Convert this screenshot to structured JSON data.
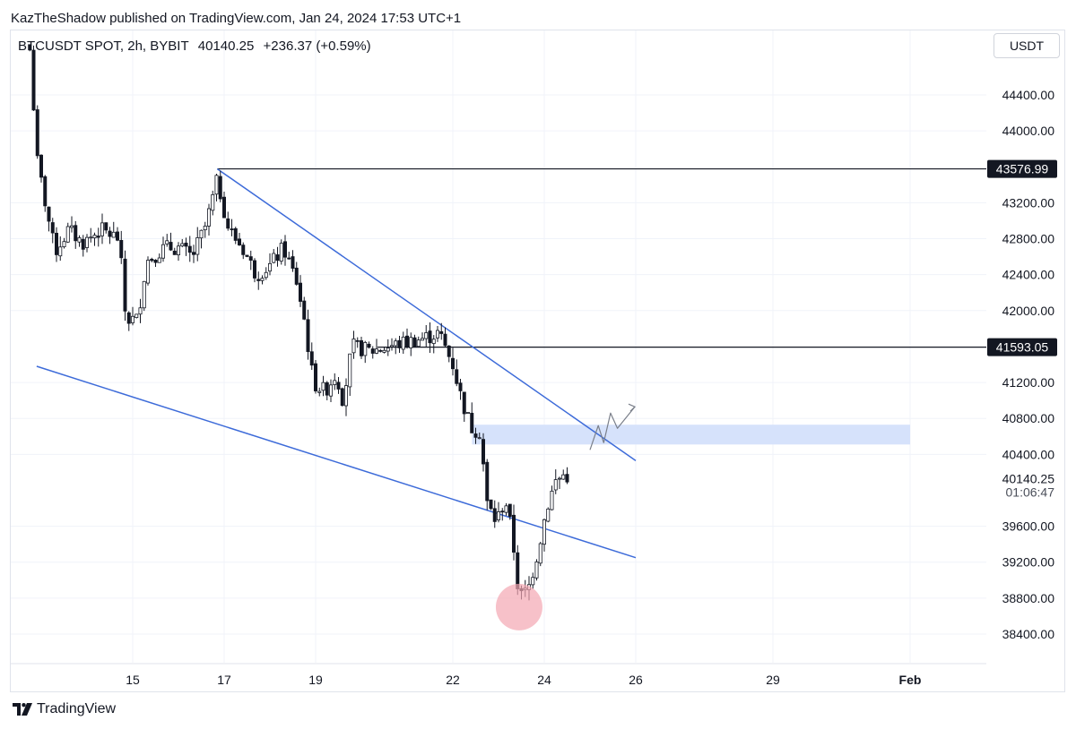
{
  "header": {
    "published_line": "KazTheShadow published on TradingView.com, Jan 24, 2024 17:53 UTC+1"
  },
  "legend": {
    "symbol": "BTCUSDT SPOT, 2h, BYBIT",
    "last": "40140.25",
    "change": "+236.37 (+0.59%)"
  },
  "toolbar": {
    "unit_label": "USDT"
  },
  "footer": {
    "brand": "TradingView"
  },
  "colors": {
    "candle": "#131722",
    "trendline": "#3d6bd9",
    "zone_fill": "#d6e2fb",
    "circle_fill": "#f3a6b2",
    "level_line": "#131722"
  },
  "chart_data": {
    "type": "candlestick",
    "symbol": "BTCUSDT SPOT",
    "interval": "2h",
    "exchange": "BYBIT",
    "ylim": [
      38100,
      44900
    ],
    "x_axis_ticks": [
      {
        "label": "15",
        "day": 15
      },
      {
        "label": "17",
        "day": 17
      },
      {
        "label": "19",
        "day": 19
      },
      {
        "label": "22",
        "day": 22
      },
      {
        "label": "24",
        "day": 24
      },
      {
        "label": "26",
        "day": 26
      },
      {
        "label": "29",
        "day": 29
      },
      {
        "label": "Feb",
        "day": 32,
        "bold": true
      }
    ],
    "y_axis_ticks": [
      "44400.00",
      "44000.00",
      "43200.00",
      "42800.00",
      "42400.00",
      "42000.00",
      "41200.00",
      "40800.00",
      "40400.00",
      "39600.00",
      "39200.00",
      "38800.00",
      "38400.00"
    ],
    "price_markers": [
      {
        "label": "43576.99",
        "value": 43576.99
      },
      {
        "label": "41593.05",
        "value": 41593.05
      }
    ],
    "last_price": {
      "label": "40140.25",
      "value": 40140.25,
      "countdown": "01:06:47"
    },
    "horizontal_levels": [
      {
        "value": 43576.99,
        "start_day": 16.85
      },
      {
        "value": 41593.05,
        "start_day": 20.35
      }
    ],
    "trendlines": [
      {
        "from": {
          "day": 16.85,
          "price": 43577
        },
        "to": {
          "day": 26.0,
          "price": 40330
        }
      },
      {
        "from": {
          "day": 12.9,
          "price": 41380
        },
        "to": {
          "day": 26.0,
          "price": 39250
        }
      }
    ],
    "zones": [
      {
        "day_from": 22.42,
        "day_to": 32.0,
        "price_from": 40510,
        "price_to": 40730
      }
    ],
    "circles": [
      {
        "day": 23.45,
        "price": 38700
      }
    ],
    "projection_path": [
      {
        "day": 25.0,
        "price": 40450
      },
      {
        "day": 25.18,
        "price": 40720
      },
      {
        "day": 25.3,
        "price": 40530
      },
      {
        "day": 25.45,
        "price": 40860
      },
      {
        "day": 25.6,
        "price": 40690
      },
      {
        "day": 25.98,
        "price": 40930
      }
    ],
    "price_path": [
      [
        12.75,
        45000
      ],
      [
        12.9,
        43700
      ],
      [
        13.05,
        43300
      ],
      [
        13.3,
        42650
      ],
      [
        13.6,
        42900
      ],
      [
        13.9,
        42750
      ],
      [
        14.3,
        42900
      ],
      [
        14.7,
        42800
      ],
      [
        14.85,
        41900
      ],
      [
        15.1,
        41900
      ],
      [
        15.3,
        42550
      ],
      [
        15.7,
        42700
      ],
      [
        16.0,
        42700
      ],
      [
        16.3,
        42600
      ],
      [
        16.6,
        42950
      ],
      [
        16.85,
        43450
      ],
      [
        17.1,
        42900
      ],
      [
        17.4,
        42700
      ],
      [
        17.7,
        42400
      ],
      [
        18.0,
        42500
      ],
      [
        18.3,
        42700
      ],
      [
        18.6,
        42300
      ],
      [
        18.75,
        41900
      ],
      [
        18.95,
        41200
      ],
      [
        19.2,
        41100
      ],
      [
        19.45,
        41300
      ],
      [
        19.6,
        41000
      ],
      [
        19.8,
        41600
      ],
      [
        20.2,
        41550
      ],
      [
        20.6,
        41600
      ],
      [
        21.0,
        41650
      ],
      [
        21.4,
        41700
      ],
      [
        21.7,
        41750
      ],
      [
        22.0,
        41400
      ],
      [
        22.2,
        41000
      ],
      [
        22.4,
        40700
      ],
      [
        22.6,
        40650
      ],
      [
        22.75,
        39850
      ],
      [
        22.95,
        39650
      ],
      [
        23.15,
        39900
      ],
      [
        23.3,
        39500
      ],
      [
        23.45,
        38800
      ],
      [
        23.65,
        38900
      ],
      [
        23.85,
        39300
      ],
      [
        24.05,
        39800
      ],
      [
        24.25,
        40100
      ],
      [
        24.45,
        40180
      ],
      [
        24.55,
        40140
      ]
    ]
  }
}
